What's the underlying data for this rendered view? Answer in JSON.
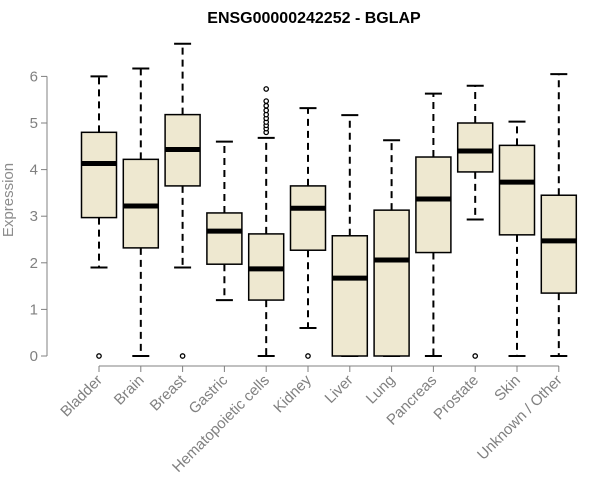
{
  "chart_data": {
    "type": "boxplot",
    "title": "ENSG00000242252 - BGLAP",
    "xlabel": "",
    "ylabel": "Expression",
    "ylim": [
      0,
      6.7
    ],
    "yticks": [
      0,
      1,
      2,
      3,
      4,
      5,
      6
    ],
    "grid": false,
    "legend": "none",
    "colors": {
      "box_fill": "#eee8d0",
      "box_stroke": "#000000",
      "median": "#000000",
      "axis": "#808080",
      "ylabel": "#8c8c8c",
      "title": "#000000"
    },
    "categories": [
      "Bladder",
      "Brain",
      "Breast",
      "Gastric",
      "Hematopoietic cells",
      "Kidney",
      "Liver",
      "Lung",
      "Pancreas",
      "Prostate",
      "Skin",
      "Unknown / Other"
    ],
    "boxes": [
      {
        "category": "Bladder",
        "whisker_low": 1.9,
        "q1": 2.97,
        "median": 4.13,
        "q3": 4.8,
        "whisker_high": 6.0,
        "outliers": [
          0.0
        ]
      },
      {
        "category": "Brain",
        "whisker_low": 0.0,
        "q1": 2.32,
        "median": 3.22,
        "q3": 4.22,
        "whisker_high": 6.17,
        "outliers": []
      },
      {
        "category": "Breast",
        "whisker_low": 1.9,
        "q1": 3.65,
        "median": 4.43,
        "q3": 5.18,
        "whisker_high": 6.7,
        "outliers": [
          0.0
        ]
      },
      {
        "category": "Gastric",
        "whisker_low": 1.2,
        "q1": 1.97,
        "median": 2.68,
        "q3": 3.07,
        "whisker_high": 4.6,
        "outliers": []
      },
      {
        "category": "Hematopoietic cells",
        "whisker_low": 0.0,
        "q1": 1.2,
        "median": 1.87,
        "q3": 2.62,
        "whisker_high": 4.68,
        "outliers": [
          4.8,
          4.88,
          4.95,
          5.02,
          5.1,
          5.18,
          5.27,
          5.37,
          5.47,
          5.73
        ]
      },
      {
        "category": "Kidney",
        "whisker_low": 0.6,
        "q1": 2.27,
        "median": 3.17,
        "q3": 3.65,
        "whisker_high": 5.32,
        "outliers": [
          0.0
        ]
      },
      {
        "category": "Liver",
        "whisker_low": 0.0,
        "q1": 0.0,
        "median": 1.67,
        "q3": 2.58,
        "whisker_high": 5.17,
        "outliers": []
      },
      {
        "category": "Lung",
        "whisker_low": 0.0,
        "q1": 0.0,
        "median": 2.06,
        "q3": 3.13,
        "whisker_high": 4.63,
        "outliers": []
      },
      {
        "category": "Pancreas",
        "whisker_low": 0.0,
        "q1": 2.22,
        "median": 3.37,
        "q3": 4.27,
        "whisker_high": 5.63,
        "outliers": []
      },
      {
        "category": "Prostate",
        "whisker_low": 2.93,
        "q1": 3.95,
        "median": 4.4,
        "q3": 5.0,
        "whisker_high": 5.8,
        "outliers": [
          0.0
        ]
      },
      {
        "category": "Skin",
        "whisker_low": 0.0,
        "q1": 2.6,
        "median": 3.73,
        "q3": 4.52,
        "whisker_high": 5.03,
        "outliers": []
      },
      {
        "category": "Unknown / Other",
        "whisker_low": 0.0,
        "q1": 1.35,
        "median": 2.47,
        "q3": 3.45,
        "whisker_high": 6.05,
        "outliers": []
      }
    ]
  }
}
